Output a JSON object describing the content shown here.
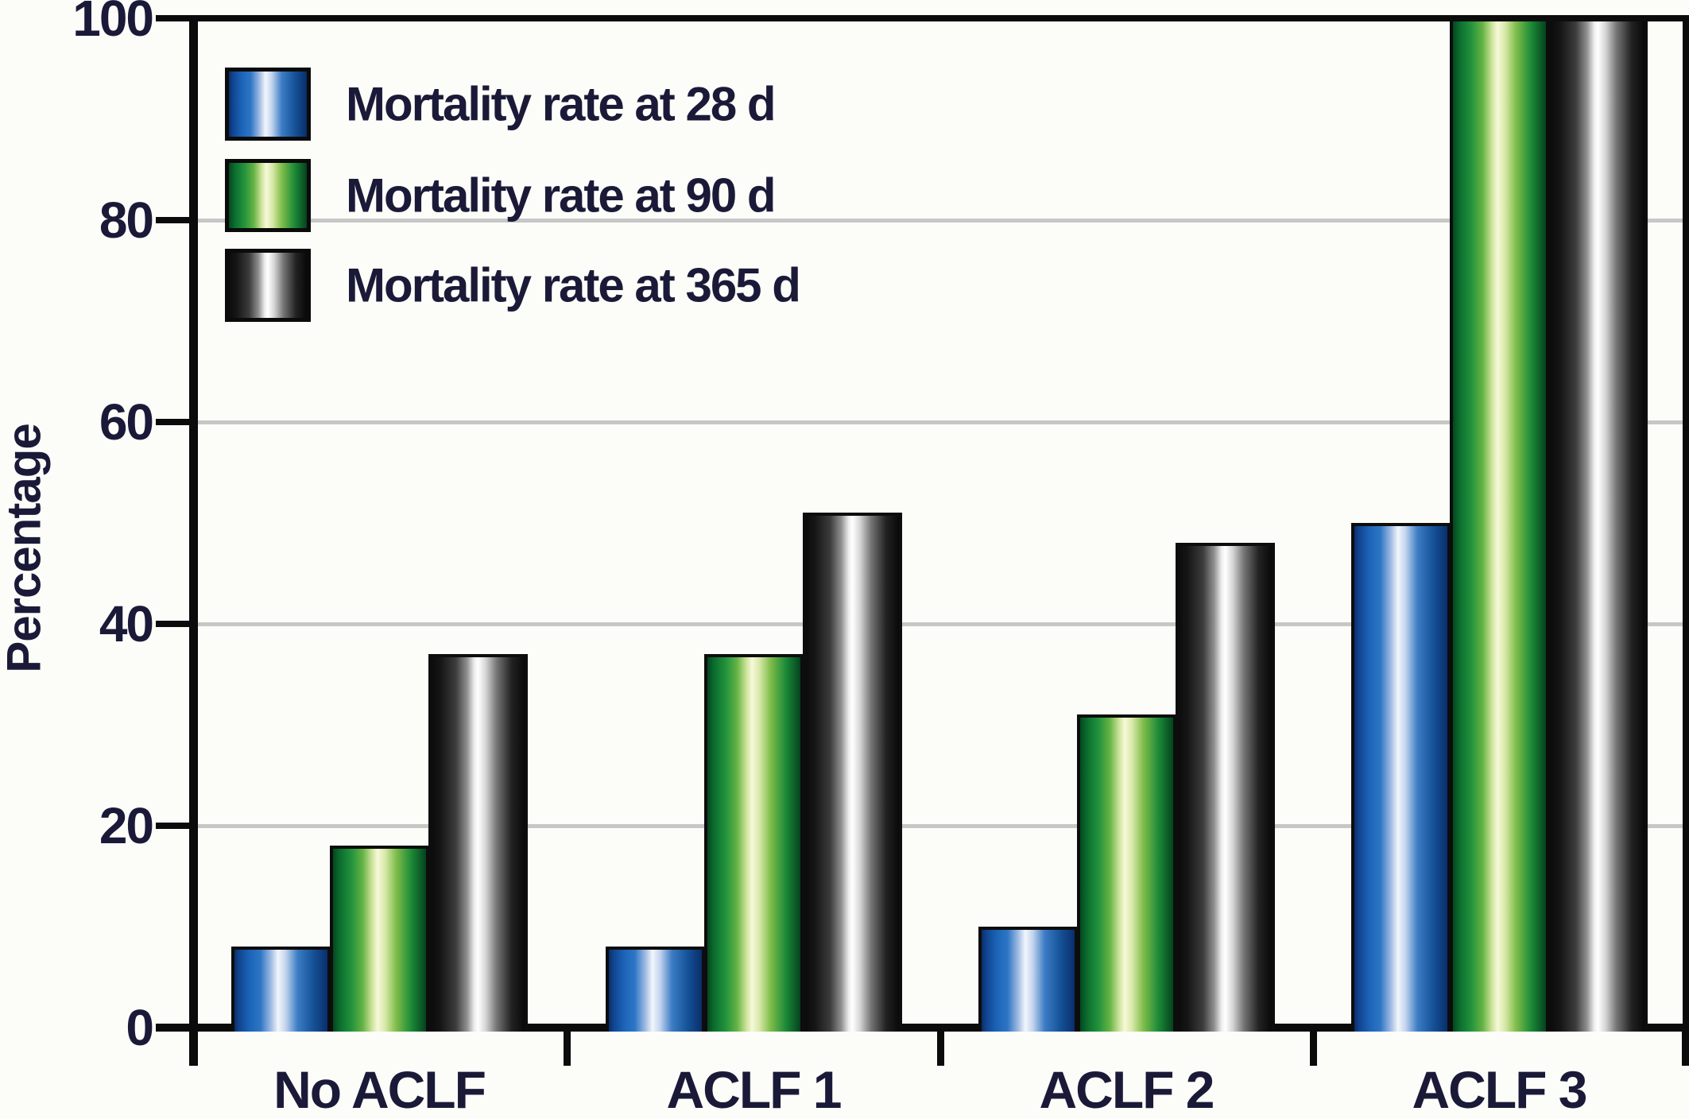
{
  "chart_data": {
    "type": "bar",
    "title": "",
    "categories": [
      "No ACLF",
      "ACLF 1",
      "ACLF 2",
      "ACLF 3"
    ],
    "series": [
      {
        "name": "Mortality rate at 28 d",
        "color_key": "blue",
        "values": [
          8,
          8,
          10,
          50
        ]
      },
      {
        "name": "Mortality rate at 90 d",
        "color_key": "green",
        "values": [
          18,
          37,
          31,
          100
        ]
      },
      {
        "name": "Mortality rate at 365 d",
        "color_key": "black",
        "values": [
          37,
          51,
          48,
          100
        ]
      }
    ],
    "xlabel": "",
    "ylabel": "Percentage",
    "ylim": [
      0,
      100
    ],
    "yticks": [
      0,
      20,
      40,
      60,
      80,
      100
    ],
    "grid": "horizontal",
    "legend_position": "top-left-inside"
  },
  "colors": {
    "blue": "#1b63b7",
    "green": "#23933c",
    "black": "#161616",
    "text": "#1a1a38",
    "gridline": "#c7c7c7",
    "axis": "#0b0b0b"
  }
}
